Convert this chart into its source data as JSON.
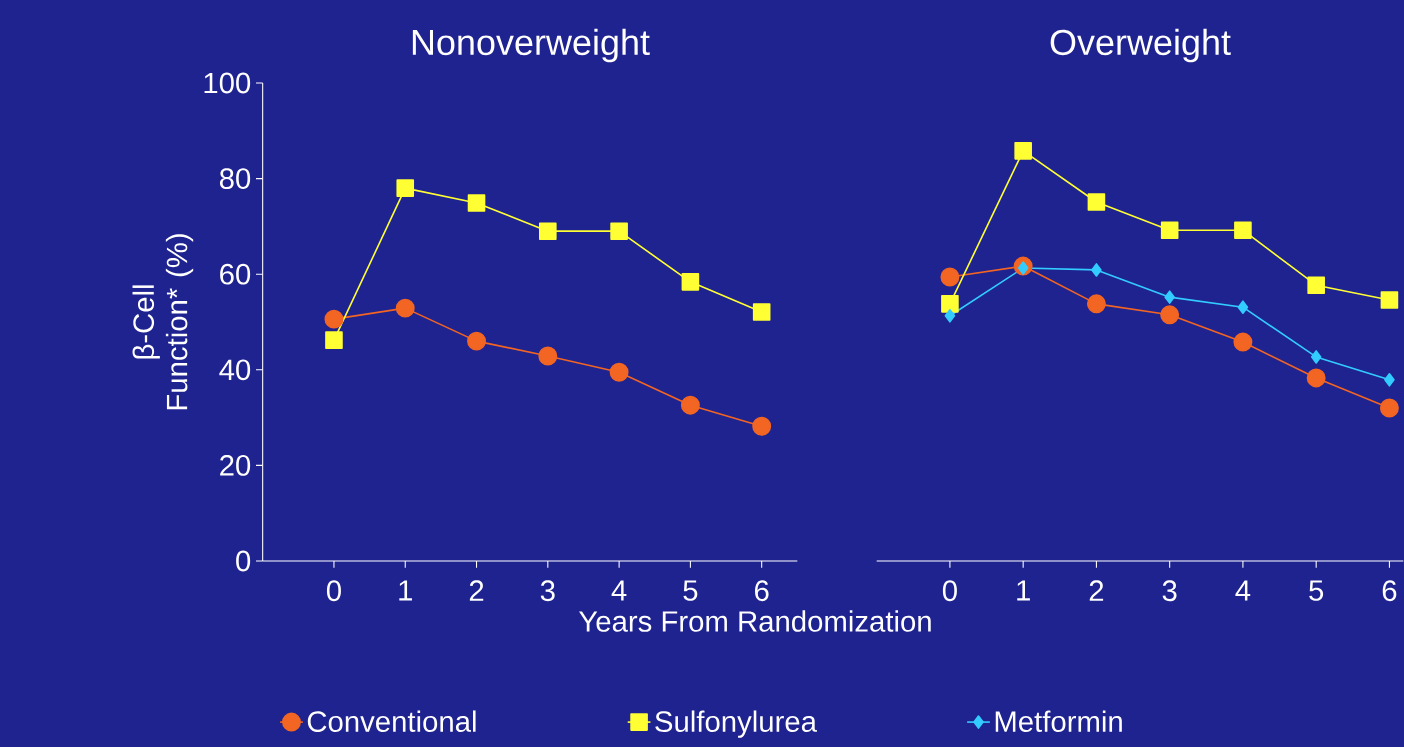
{
  "chart_data": [
    {
      "type": "line",
      "title": "Nonoverweight",
      "ylabel": "β-Cell Function* (%)",
      "x": [
        0,
        1,
        2,
        3,
        4,
        5,
        6
      ],
      "xlim": [
        -1,
        6.5
      ],
      "xticks": [
        0,
        1,
        2,
        3,
        4,
        5,
        6
      ],
      "ylim": [
        0,
        100
      ],
      "yticks": [
        0,
        20,
        40,
        60,
        80,
        100
      ],
      "series": [
        {
          "color": "#f26522",
          "marker": "circle",
          "values": [
            50.6,
            52.9,
            46,
            42.9,
            39.5,
            32.6,
            28.2
          ]
        },
        {
          "color": "#ffff33",
          "marker": "square",
          "values": [
            46.2,
            78,
            74.9,
            69,
            69,
            58.4,
            52.1
          ]
        }
      ]
    },
    {
      "type": "line",
      "title": "Overweight",
      "xlabel": "Years From Randomization",
      "x": [
        0,
        1,
        2,
        3,
        4,
        5,
        6
      ],
      "xlim": [
        -1,
        6.19
      ],
      "xticks": [
        0,
        1,
        2,
        3,
        4,
        5,
        6
      ],
      "ylim": [
        0,
        100
      ],
      "yticks": [
        0,
        20,
        40,
        60,
        80,
        100
      ],
      "tick_labels": "x",
      "legend": "bottom",
      "series": [
        {
          "name": "Conventional",
          "color": "#f26522",
          "marker": "circle",
          "values": [
            59.4,
            61.7,
            53.8,
            51.5,
            45.8,
            38.3,
            32
          ]
        },
        {
          "name": "Sulfonylurea",
          "color": "#ffff33",
          "marker": "square",
          "values": [
            53.8,
            85.8,
            75.1,
            69.2,
            69.2,
            57.7,
            54.6
          ]
        },
        {
          "name": "Metformin",
          "color": "#33ccff",
          "marker": "diamond",
          "values": [
            51.3,
            61.3,
            60.9,
            55.2,
            53.1,
            42.7,
            37.9
          ]
        }
      ]
    }
  ]
}
